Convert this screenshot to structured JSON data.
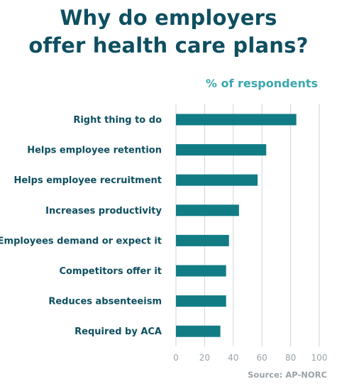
{
  "chart_data": {
    "type": "bar",
    "orientation": "horizontal",
    "title_lines": [
      "Why do employers",
      "offer health care plans?"
    ],
    "subtitle": "% of respondents",
    "categories": [
      "Right thing to do",
      "Helps employee retention",
      "Helps employee recruitment",
      "Increases productivity",
      "Employees demand or expect it",
      "Competitors offer it",
      "Reduces absenteeism",
      "Required by ACA"
    ],
    "values": [
      84,
      63,
      57,
      44,
      37,
      35,
      35,
      31
    ],
    "xlim": [
      0,
      100
    ],
    "xticks": [
      0,
      20,
      40,
      60,
      80,
      100
    ],
    "grid": true,
    "bar_color": "#127c85"
  },
  "source": "Source: AP-NORC"
}
